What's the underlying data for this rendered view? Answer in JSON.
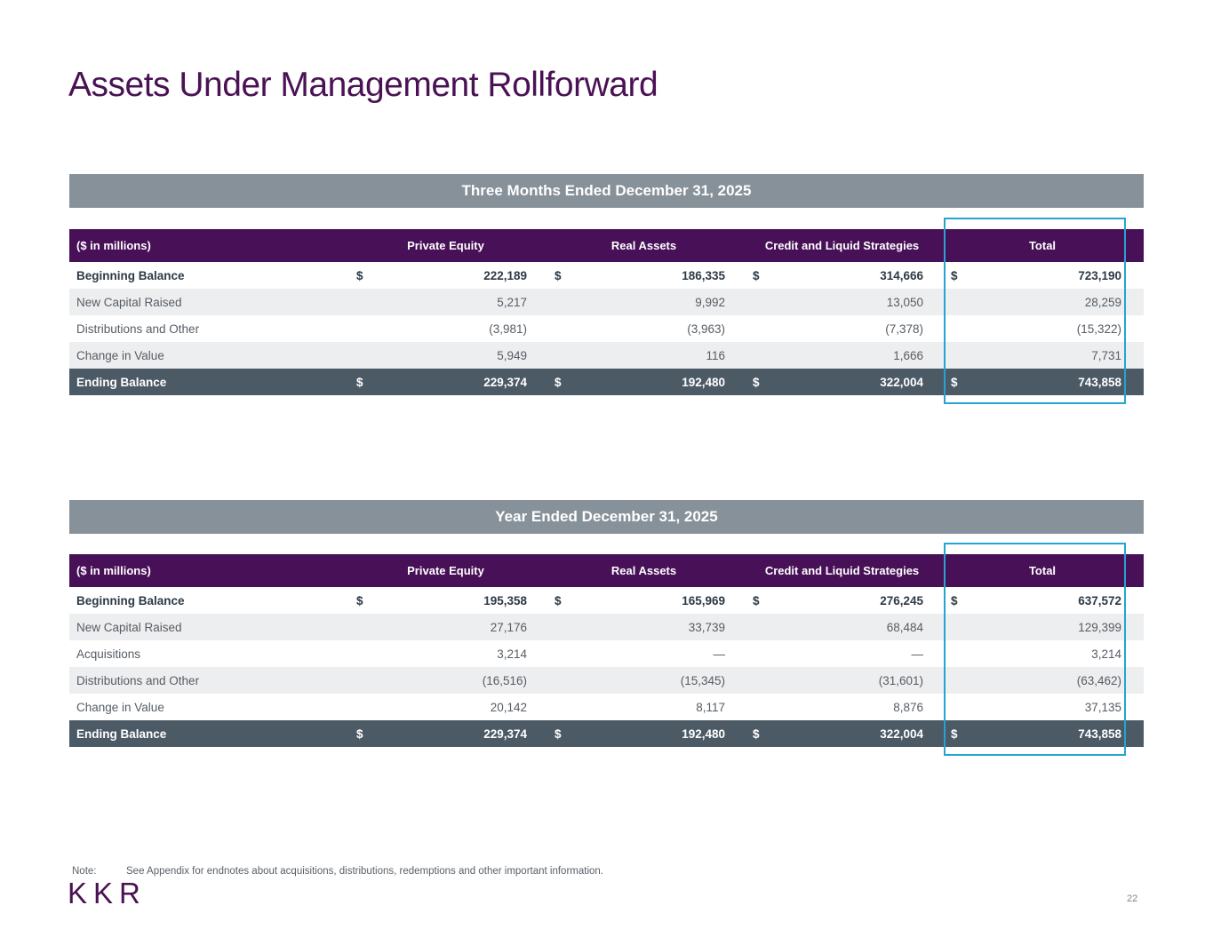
{
  "slide": {
    "title": "Assets Under Management Rollforward",
    "page_number": "22"
  },
  "footer": {
    "note_label": "Note:",
    "note_text": "See Appendix for endnotes about acquisitions, distributions, redemptions and other important information.",
    "logo_text": "KKR"
  },
  "colors": {
    "brand_purple": "#4A1254",
    "header_purple": "#481057",
    "banner_gray": "#879199",
    "total_row_slate": "#4C5A66",
    "alt_row_gray": "#EDEEEF",
    "highlight_teal": "#25A4D1"
  },
  "tables": [
    {
      "banner": "Three Months Ended December 31, 2025",
      "currency": "$",
      "highlight_column": "Total",
      "columns": [
        "($ in millions)",
        "Private Equity",
        "Real Assets",
        "Credit and Liquid Strategies",
        "Total"
      ],
      "rows": [
        {
          "label": "Beginning Balance",
          "style": "first",
          "dollar": true,
          "values": [
            "222,189",
            "186,335",
            "314,666",
            "723,190"
          ]
        },
        {
          "label": "New Capital Raised",
          "style": "alt",
          "dollar": false,
          "values": [
            "5,217",
            "9,992",
            "13,050",
            "28,259"
          ]
        },
        {
          "label": "Distributions and Other",
          "style": "plain",
          "dollar": false,
          "values": [
            "(3,981)",
            "(3,963)",
            "(7,378)",
            "(15,322)"
          ]
        },
        {
          "label": "Change in Value",
          "style": "alt",
          "dollar": false,
          "values": [
            "5,949",
            "116",
            "1,666",
            "7,731"
          ]
        },
        {
          "label": "Ending Balance",
          "style": "total",
          "dollar": true,
          "values": [
            "229,374",
            "192,480",
            "322,004",
            "743,858"
          ]
        }
      ]
    },
    {
      "banner": "Year Ended December 31, 2025",
      "currency": "$",
      "highlight_column": "Total",
      "columns": [
        "($ in millions)",
        "Private Equity",
        "Real Assets",
        "Credit and Liquid Strategies",
        "Total"
      ],
      "rows": [
        {
          "label": "Beginning Balance",
          "style": "first",
          "dollar": true,
          "values": [
            "195,358",
            "165,969",
            "276,245",
            "637,572"
          ]
        },
        {
          "label": "New Capital Raised",
          "style": "alt",
          "dollar": false,
          "values": [
            "27,176",
            "33,739",
            "68,484",
            "129,399"
          ]
        },
        {
          "label": "Acquisitions",
          "style": "plain",
          "dollar": false,
          "values": [
            "3,214",
            "—",
            "—",
            "3,214"
          ]
        },
        {
          "label": "Distributions and Other",
          "style": "alt",
          "dollar": false,
          "values": [
            "(16,516)",
            "(15,345)",
            "(31,601)",
            "(63,462)"
          ]
        },
        {
          "label": "Change in Value",
          "style": "plain",
          "dollar": false,
          "values": [
            "20,142",
            "8,117",
            "8,876",
            "37,135"
          ]
        },
        {
          "label": "Ending Balance",
          "style": "total",
          "dollar": true,
          "values": [
            "229,374",
            "192,480",
            "322,004",
            "743,858"
          ]
        }
      ]
    }
  ]
}
